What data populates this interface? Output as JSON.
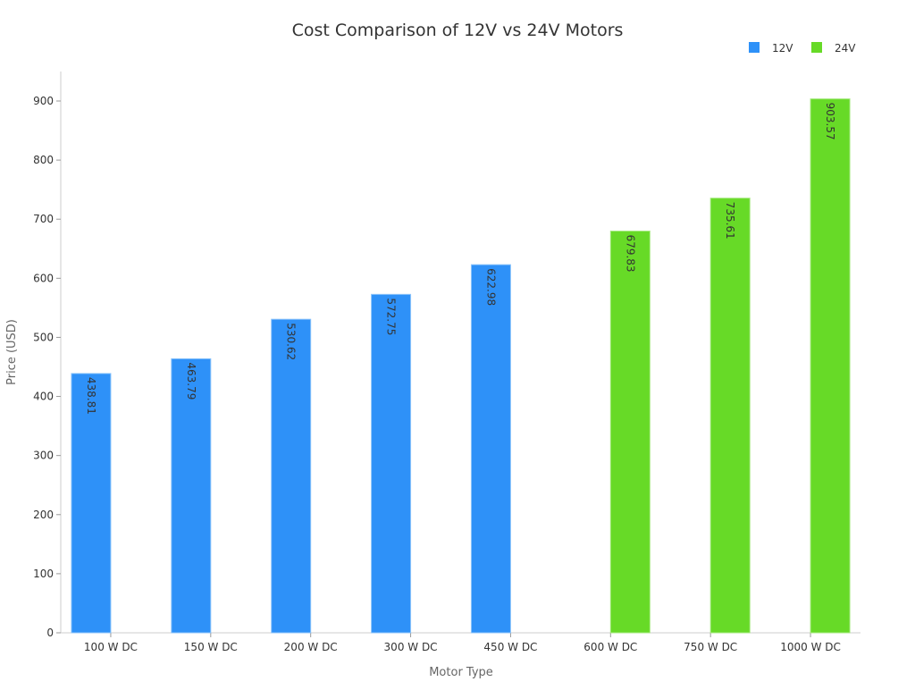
{
  "chart_data": {
    "type": "bar",
    "title": "Cost Comparison of 12V vs 24V Motors",
    "xlabel": "Motor Type",
    "ylabel": "Price (USD)",
    "ylim": [
      0,
      950
    ],
    "yticks": [
      0,
      100,
      200,
      300,
      400,
      500,
      600,
      700,
      800,
      900
    ],
    "grid": false,
    "legend_position": "top-right",
    "categories": [
      "100 W DC",
      "150 W DC",
      "200 W DC",
      "300 W DC",
      "450 W DC",
      "600 W DC",
      "750 W DC",
      "1000 W DC"
    ],
    "series": [
      {
        "name": "12V",
        "color": "#2e91f8",
        "values": [
          438.81,
          463.79,
          530.62,
          572.75,
          622.98,
          null,
          null,
          null
        ]
      },
      {
        "name": "24V",
        "color": "#67da27",
        "values": [
          null,
          null,
          null,
          null,
          null,
          679.83,
          735.61,
          903.57
        ]
      }
    ]
  }
}
